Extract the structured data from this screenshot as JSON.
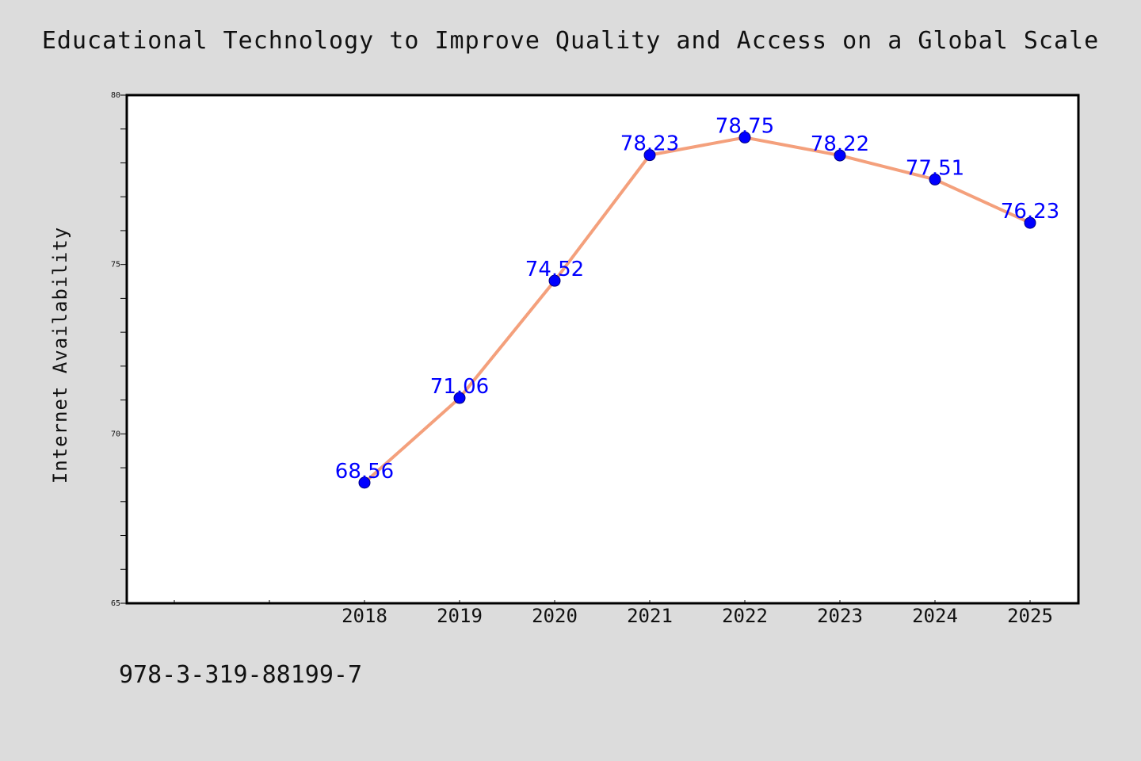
{
  "page": {
    "title": "Educational Technology to Improve Quality and Access on a Global Scale",
    "footer_code": "978-3-319-88199-7"
  },
  "colors": {
    "background": "#dcdcdc",
    "plot_background": "#ffffff",
    "line": "#f4a07c",
    "marker": "#0000ff",
    "data_label": "#0000ff"
  },
  "chart_data": {
    "type": "line",
    "title": "Educational Technology to Improve Quality and Access on a Global Scale",
    "xlabel": "",
    "ylabel": "Internet Availability",
    "ylim": [
      65,
      80
    ],
    "yticks": [
      65,
      70,
      75,
      80
    ],
    "x": [
      "2018",
      "2019",
      "2020",
      "2021",
      "2022",
      "2023",
      "2024",
      "2025"
    ],
    "series": [
      {
        "values": [
          68.56,
          71.06,
          74.52,
          78.23,
          78.75,
          78.22,
          77.51,
          76.23
        ],
        "labels": [
          "68.56",
          "71.06",
          "74.52",
          "78.23",
          "78.75",
          "78.22",
          "77.51",
          "76.23"
        ]
      }
    ],
    "grid": false,
    "marker": "circle"
  }
}
